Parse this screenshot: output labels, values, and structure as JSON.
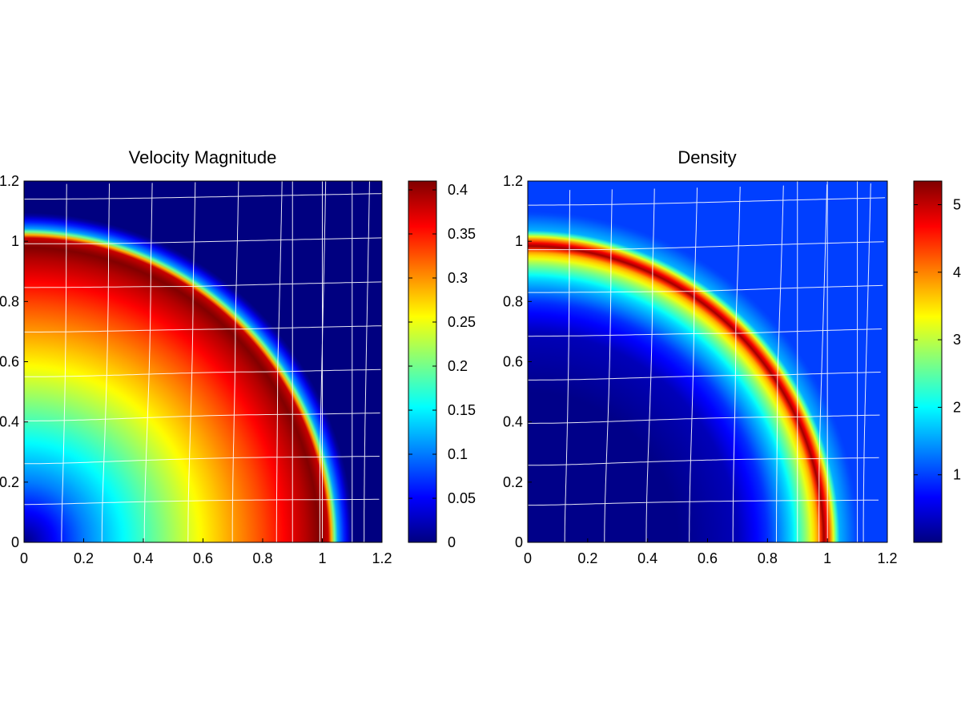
{
  "figure": {
    "background": "#ffffff",
    "colormap": "jet"
  },
  "chart_data": [
    {
      "type": "heatmap",
      "title": "Velocity Magnitude",
      "xlabel": "",
      "ylabel": "",
      "xlim": [
        0,
        1.2
      ],
      "ylim": [
        0,
        1.2
      ],
      "x_ticks": [
        0,
        0.2,
        0.4,
        0.6,
        0.8,
        1,
        1.2
      ],
      "y_ticks": [
        0,
        0.2,
        0.4,
        0.6,
        0.8,
        1,
        1.2
      ],
      "x_tick_labels": [
        "0",
        "0.2",
        "0.4",
        "0.6",
        "0.8",
        "1",
        "1.2"
      ],
      "y_tick_labels": [
        "0",
        "0.2",
        "0.4",
        "0.6",
        "0.8",
        "1",
        "1.2"
      ],
      "grid": false,
      "mesh_overlay": "white curvilinear Lagrangian mesh",
      "field": {
        "description": "radially symmetric about origin, peak at shock front",
        "center": [
          0,
          0
        ],
        "profile_r": [
          0,
          0.2,
          0.4,
          0.6,
          0.8,
          0.9,
          0.95,
          0.99,
          1.02,
          1.05,
          1.1,
          1.2,
          1.7
        ],
        "profile_v": [
          0.0,
          0.1,
          0.18,
          0.26,
          0.33,
          0.37,
          0.39,
          0.41,
          0.38,
          0.12,
          0.0,
          0.0,
          0.0
        ]
      },
      "colorbar": {
        "min": 0,
        "max": 0.41,
        "ticks": [
          0,
          0.05,
          0.1,
          0.15,
          0.2,
          0.25,
          0.3,
          0.35,
          0.4
        ],
        "tick_labels": [
          "0",
          "0.05",
          "0.1",
          "0.15",
          "0.2",
          "0.25",
          "0.3",
          "0.35",
          "0.4"
        ]
      }
    },
    {
      "type": "heatmap",
      "title": "Density",
      "xlabel": "",
      "ylabel": "",
      "xlim": [
        0,
        1.2
      ],
      "ylim": [
        0,
        1.2
      ],
      "x_ticks": [
        0,
        0.2,
        0.4,
        0.6,
        0.8,
        1,
        1.2
      ],
      "y_ticks": [
        0,
        0.2,
        0.4,
        0.6,
        0.8,
        1,
        1.2
      ],
      "x_tick_labels": [
        "0",
        "0.2",
        "0.4",
        "0.6",
        "0.8",
        "1",
        "1.2"
      ],
      "y_tick_labels": [
        "0",
        "0.2",
        "0.4",
        "0.6",
        "0.8",
        "1",
        "1.2"
      ],
      "grid": false,
      "mesh_overlay": "white curvilinear Lagrangian mesh",
      "field": {
        "description": "low density core, narrow high-density shell at shock front, ambient density 1 outside",
        "center": [
          0,
          0
        ],
        "profile_r": [
          0,
          0.5,
          0.7,
          0.8,
          0.88,
          0.93,
          0.97,
          0.99,
          1.01,
          1.04,
          1.1,
          1.7
        ],
        "profile_v": [
          0.05,
          0.05,
          0.3,
          0.9,
          1.8,
          2.8,
          3.9,
          5.3,
          4.0,
          1.6,
          1.0,
          1.0
        ]
      },
      "colorbar": {
        "min": 0,
        "max": 5.35,
        "ticks": [
          1,
          2,
          3,
          4,
          5
        ],
        "tick_labels": [
          "1",
          "2",
          "3",
          "4",
          "5"
        ]
      }
    }
  ]
}
